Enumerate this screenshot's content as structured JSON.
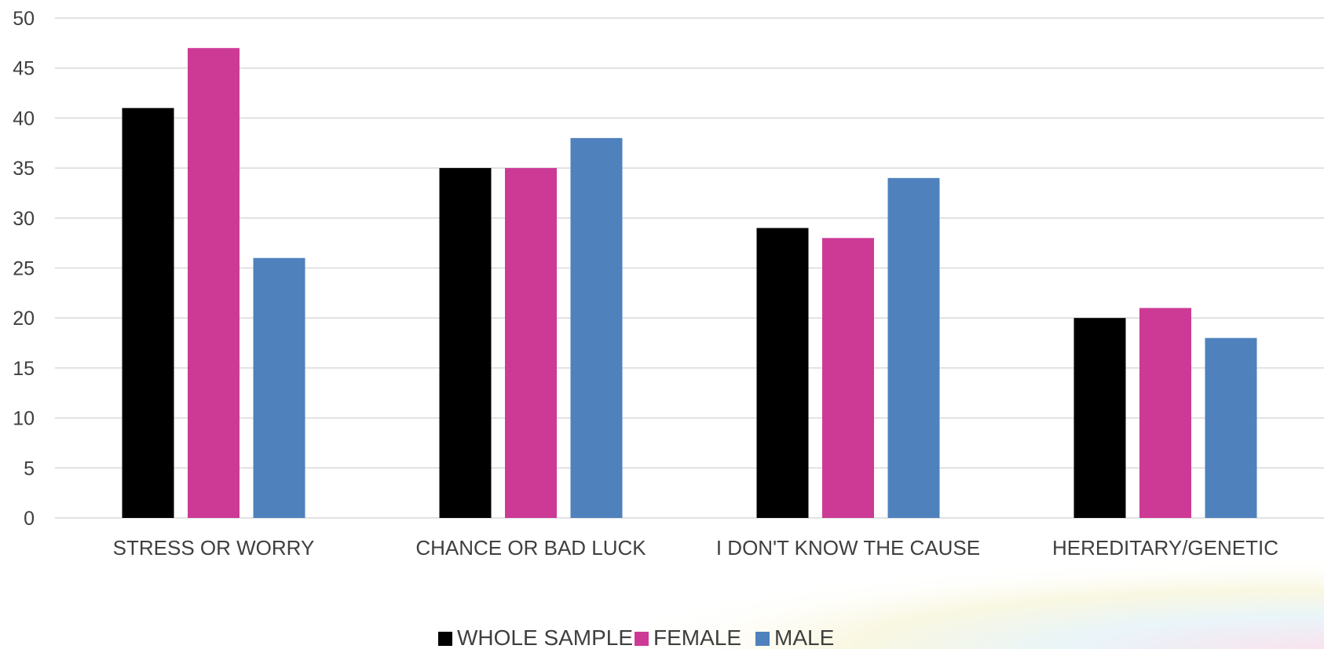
{
  "chart_data": {
    "type": "bar",
    "categories": [
      "STRESS OR WORRY",
      "CHANCE OR BAD LUCK",
      "I DON'T KNOW THE CAUSE",
      "HEREDITARY/GENETIC"
    ],
    "series": [
      {
        "name": "WHOLE SAMPLE",
        "color": "#000000",
        "values": [
          41,
          35,
          29,
          20
        ]
      },
      {
        "name": "FEMALE",
        "color": "#cc3a96",
        "values": [
          47,
          35,
          28,
          21
        ]
      },
      {
        "name": "MALE",
        "color": "#4f81bd",
        "values": [
          26,
          38,
          34,
          18
        ]
      }
    ],
    "title": "",
    "xlabel": "",
    "ylabel": "",
    "ylim": [
      0,
      50
    ],
    "yticks": [
      0,
      5,
      10,
      15,
      20,
      25,
      30,
      35,
      40,
      45,
      50
    ],
    "grid": true,
    "legend_position": "bottom-center"
  }
}
